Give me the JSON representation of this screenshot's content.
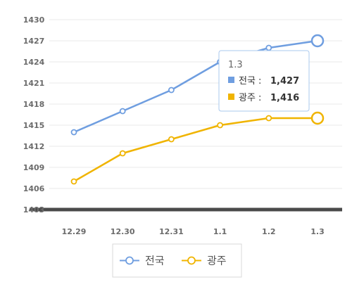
{
  "chart_data": {
    "type": "line",
    "categories": [
      "12.29",
      "12.30",
      "12.31",
      "1.1",
      "1.2",
      "1.3"
    ],
    "y_ticks": [
      "1430",
      "1427",
      "1424",
      "1421",
      "1418",
      "1415",
      "1412",
      "1409",
      "1406",
      "1403"
    ],
    "ylim": [
      1403,
      1430
    ],
    "grid": true,
    "legend_position": "bottom",
    "series": [
      {
        "name": "전국",
        "color": "#6f9ee0",
        "values": [
          1414,
          1417,
          1420,
          1424,
          1426,
          1427
        ]
      },
      {
        "name": "광주",
        "color": "#f0b400",
        "values": [
          1407,
          1411,
          1413,
          1415,
          1416,
          1416
        ]
      }
    ],
    "tooltip": {
      "title": "1.3",
      "rows": [
        {
          "label": "전국 : ",
          "value": "1,427",
          "color": "#6f9ee0"
        },
        {
          "label": "광주 : ",
          "value": "1,416",
          "color": "#f0b400"
        }
      ]
    }
  }
}
